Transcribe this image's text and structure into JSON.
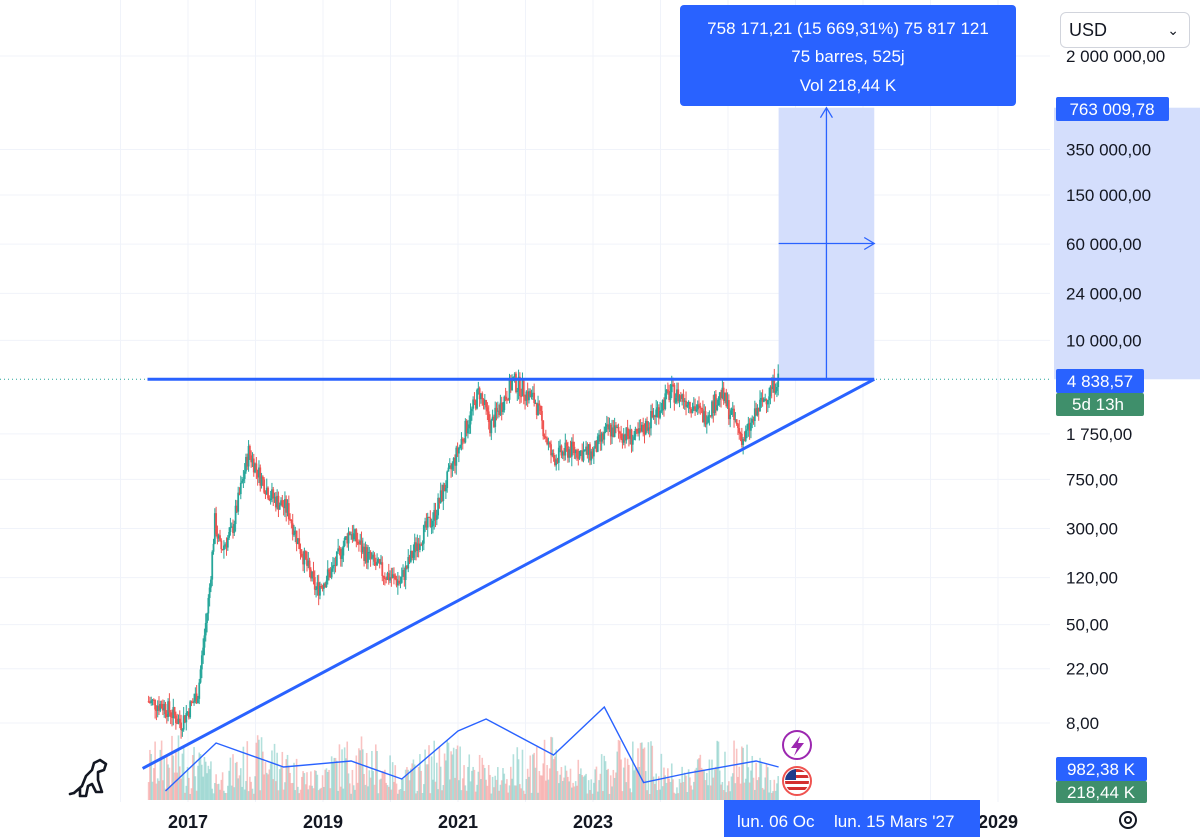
{
  "header": {
    "currency": "USD"
  },
  "measure": {
    "line1": "758 171,21 (15 669,31%) 75 817 121",
    "line2": "75 barres, 525j",
    "line3": "Vol 218,44 K"
  },
  "badges": {
    "target_price": "763 009,78",
    "last_price": "4 838,57",
    "countdown": "5d 13h",
    "volume_ma": "982,38 K",
    "volume": "218,44 K"
  },
  "crosshair": {
    "start_date": "lun. 06 Oc",
    "end_date": "lun. 15 Mars '27"
  },
  "colors": {
    "up": "#26a69a",
    "down": "#ef5350",
    "trendline": "#2962ff",
    "measure_fill": "#d4defc",
    "info_box": "#2962ff",
    "countdown": "#3f8f6b",
    "volume_ma": "#2962ff"
  },
  "icons": {
    "lightning": "lightning-icon",
    "flag": "us-flag-icon",
    "logo": "dino-logo-icon",
    "settings": "settings-icon"
  },
  "chart_data": {
    "type": "candlestick",
    "scale": "log",
    "x_ticks": [
      "2017",
      "2019",
      "2021",
      "2023",
      "2029"
    ],
    "y_ticks": [
      "2 000 000,00",
      "350 000,00",
      "150 000,00",
      "60 000,00",
      "24 000,00",
      "10 000,00",
      "1 750,00",
      "750,00",
      "300,00",
      "120,00",
      "50,00",
      "22,00",
      "8,00"
    ],
    "y_values": [
      2000000,
      350000,
      150000,
      60000,
      24000,
      10000,
      1750,
      750,
      300,
      120,
      50,
      22,
      8
    ],
    "price_path": [
      {
        "date": "2016-06",
        "price": 12
      },
      {
        "date": "2016-09",
        "price": 11
      },
      {
        "date": "2016-12",
        "price": 8
      },
      {
        "date": "2017-03",
        "price": 14
      },
      {
        "date": "2017-05",
        "price": 90
      },
      {
        "date": "2017-06",
        "price": 340
      },
      {
        "date": "2017-07",
        "price": 200
      },
      {
        "date": "2017-09",
        "price": 280
      },
      {
        "date": "2017-12",
        "price": 1250
      },
      {
        "date": "2018-02",
        "price": 800
      },
      {
        "date": "2018-04",
        "price": 550
      },
      {
        "date": "2018-07",
        "price": 420
      },
      {
        "date": "2018-09",
        "price": 220
      },
      {
        "date": "2018-12",
        "price": 95
      },
      {
        "date": "2019-03",
        "price": 140
      },
      {
        "date": "2019-06",
        "price": 290
      },
      {
        "date": "2019-09",
        "price": 180
      },
      {
        "date": "2019-12",
        "price": 130
      },
      {
        "date": "2020-03",
        "price": 110
      },
      {
        "date": "2020-06",
        "price": 230
      },
      {
        "date": "2020-09",
        "price": 380
      },
      {
        "date": "2021-01",
        "price": 1200
      },
      {
        "date": "2021-05",
        "price": 3900
      },
      {
        "date": "2021-07",
        "price": 2000
      },
      {
        "date": "2021-11",
        "price": 4700
      },
      {
        "date": "2022-03",
        "price": 3200
      },
      {
        "date": "2022-06",
        "price": 1100
      },
      {
        "date": "2022-09",
        "price": 1300
      },
      {
        "date": "2023-01",
        "price": 1200
      },
      {
        "date": "2023-04",
        "price": 1900
      },
      {
        "date": "2023-09",
        "price": 1600
      },
      {
        "date": "2024-03",
        "price": 3800
      },
      {
        "date": "2024-06",
        "price": 3300
      },
      {
        "date": "2024-09",
        "price": 2400
      },
      {
        "date": "2024-12",
        "price": 3700
      },
      {
        "date": "2025-04",
        "price": 1550
      },
      {
        "date": "2025-07",
        "price": 3000
      },
      {
        "date": "2025-10",
        "price": 4838.57
      }
    ],
    "horizontal_line": {
      "price": 4838.57
    },
    "trendline": {
      "start": {
        "date": "2016-06",
        "price": 6
      },
      "end": {
        "date": "2027-03",
        "price": 4838.57
      }
    },
    "projection": {
      "start_date": "2025-10",
      "end_date": "2027-03",
      "from_price": 4838.57,
      "to_price": 763009.78
    },
    "volume_ma_path": [
      {
        "date": "2016-09",
        "level": 0.05
      },
      {
        "date": "2017-06",
        "level": 0.45
      },
      {
        "date": "2018-06",
        "level": 0.25
      },
      {
        "date": "2019-06",
        "level": 0.3
      },
      {
        "date": "2020-03",
        "level": 0.15
      },
      {
        "date": "2021-01",
        "level": 0.55
      },
      {
        "date": "2021-06",
        "level": 0.65
      },
      {
        "date": "2022-06",
        "level": 0.35
      },
      {
        "date": "2023-03",
        "level": 0.75
      },
      {
        "date": "2023-10",
        "level": 0.12
      },
      {
        "date": "2024-06",
        "level": 0.2
      },
      {
        "date": "2025-06",
        "level": 0.3
      },
      {
        "date": "2025-10",
        "level": 0.25
      }
    ]
  }
}
